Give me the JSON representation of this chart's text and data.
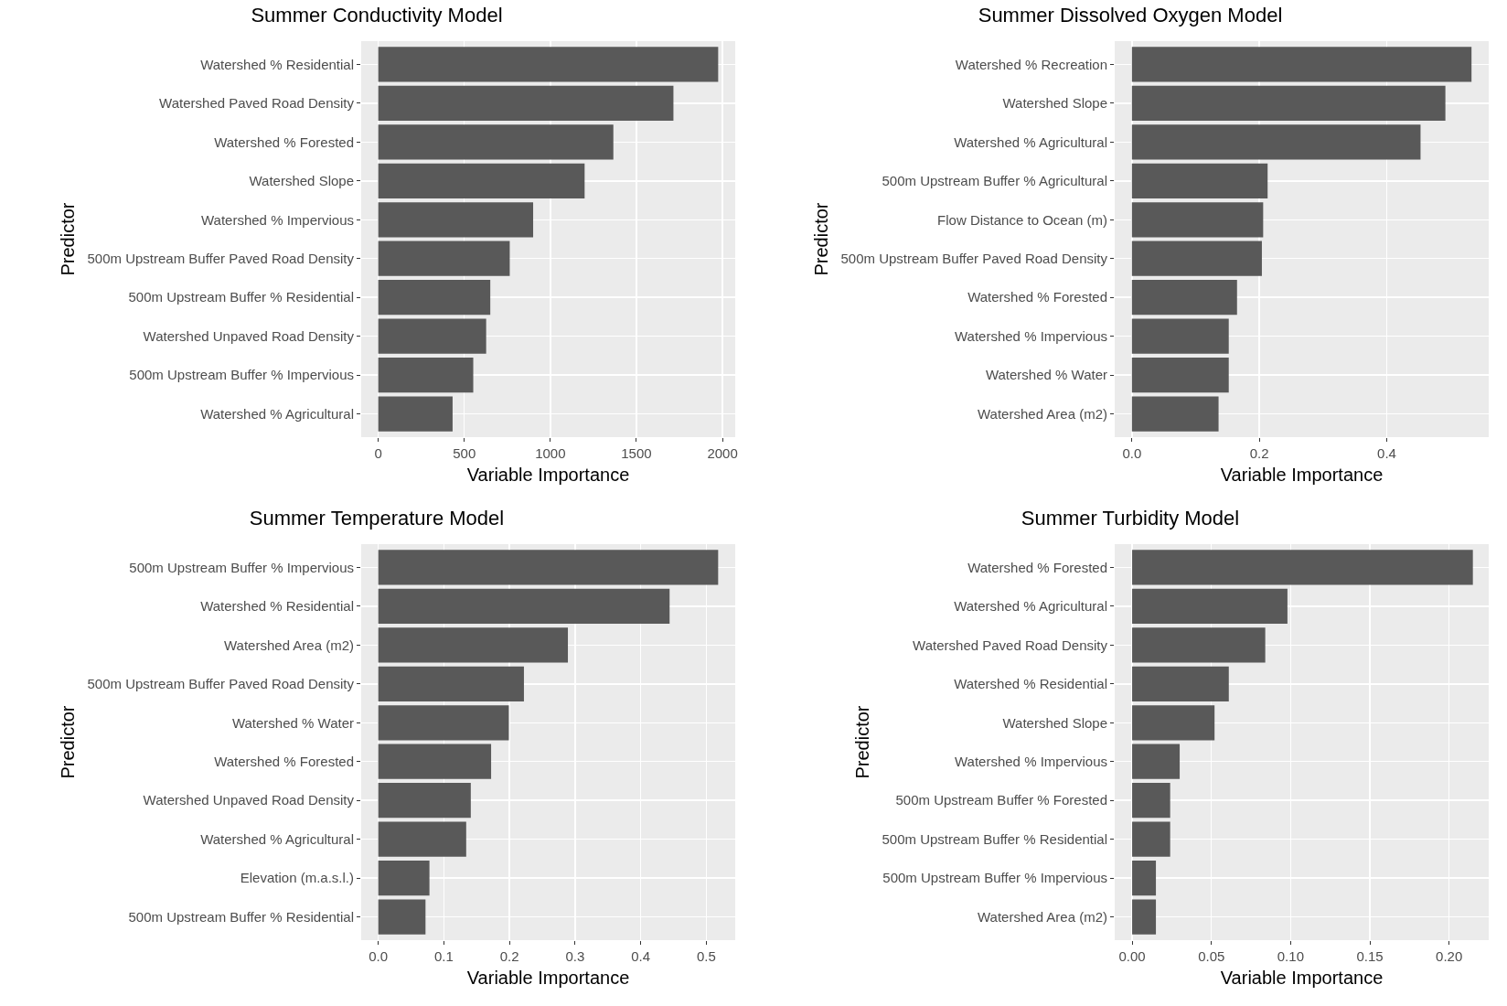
{
  "chart_data": [
    {
      "type": "bar",
      "orientation": "horizontal",
      "title": "Summer Conductivity Model",
      "xlabel": "Variable Importance",
      "ylabel": "Predictor",
      "grid": true,
      "categories": [
        "Watershed % Residential",
        "Watershed Paved Road Density",
        "Watershed % Forested",
        "Watershed Slope",
        "Watershed % Impervious",
        "500m Upstream Buffer Paved Road Density",
        "500m Upstream Buffer % Residential",
        "Watershed Unpaved Road Density",
        "500m Upstream Buffer % Impervious",
        "Watershed % Agricultural"
      ],
      "values": [
        1975,
        1715,
        1366,
        1199,
        900,
        764,
        651,
        627,
        552,
        432
      ],
      "color": "#595959",
      "xlim": [
        -99,
        2074
      ],
      "xticks": [
        0,
        500,
        1000,
        1500,
        2000
      ]
    },
    {
      "type": "bar",
      "orientation": "horizontal",
      "title": "Summer Dissolved Oxygen Model",
      "xlabel": "Variable Importance",
      "ylabel": "Predictor",
      "grid": true,
      "categories": [
        "Watershed % Recreation",
        "Watershed Slope",
        "Watershed % Agricultural",
        "500m Upstream Buffer % Agricultural",
        "Flow Distance to Ocean (m)",
        "500m Upstream Buffer Paved Road Density",
        "Watershed % Forested",
        "Watershed % Impervious",
        "Watershed % Water",
        "Watershed Area (m2)"
      ],
      "values": [
        0.533,
        0.492,
        0.453,
        0.213,
        0.206,
        0.204,
        0.165,
        0.152,
        0.152,
        0.136
      ],
      "color": "#595959",
      "xlim": [
        -0.027,
        0.56
      ],
      "xticks": [
        {
          "value": 0,
          "label": "0.0"
        },
        0.2,
        0.4
      ]
    },
    {
      "type": "bar",
      "orientation": "horizontal",
      "title": "Summer Temperature Model",
      "xlabel": "Variable Importance",
      "ylabel": "Predictor",
      "grid": true,
      "categories": [
        "500m Upstream Buffer % Impervious",
        "Watershed % Residential",
        "Watershed Area (m2)",
        "500m Upstream Buffer Paved Road Density",
        "Watershed % Water",
        "Watershed % Forested",
        "Watershed Unpaved Road Density",
        "Watershed % Agricultural",
        "Elevation (m.a.s.l.)",
        "500m Upstream Buffer % Residential"
      ],
      "values": [
        0.518,
        0.444,
        0.289,
        0.222,
        0.199,
        0.172,
        0.141,
        0.134,
        0.078,
        0.072
      ],
      "color": "#595959",
      "xlim": [
        -0.026,
        0.544
      ],
      "xticks": [
        {
          "value": 0,
          "label": "0.0"
        },
        0.1,
        0.2,
        0.3,
        0.4,
        0.5
      ]
    },
    {
      "type": "bar",
      "orientation": "horizontal",
      "title": "Summer Turbidity Model",
      "xlabel": "Variable Importance",
      "ylabel": "Predictor",
      "grid": true,
      "categories": [
        "Watershed % Forested",
        "Watershed % Agricultural",
        "Watershed Paved Road Density",
        "Watershed % Residential",
        "Watershed Slope",
        "Watershed % Impervious",
        "500m Upstream Buffer % Forested",
        "500m Upstream Buffer % Residential",
        "500m Upstream Buffer % Impervious",
        "Watershed Area (m2)"
      ],
      "values": [
        0.215,
        0.098,
        0.084,
        0.061,
        0.052,
        0.03,
        0.024,
        0.024,
        0.015,
        0.015
      ],
      "color": "#595959",
      "xlim": [
        -0.011,
        0.225
      ],
      "xticks": [
        {
          "value": 0,
          "label": "0.00"
        },
        {
          "value": 0.05,
          "label": "0.05"
        },
        {
          "value": 0.1,
          "label": "0.10"
        },
        {
          "value": 0.15,
          "label": "0.15"
        },
        {
          "value": 0.2,
          "label": "0.20"
        }
      ]
    }
  ]
}
